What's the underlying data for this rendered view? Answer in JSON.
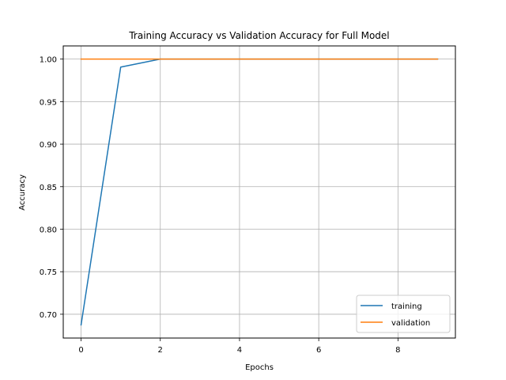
{
  "chart_data": {
    "type": "line",
    "title": "Training Accuracy vs Validation Accuracy for Full Model",
    "xlabel": "Epochs",
    "ylabel": "Accuracy",
    "x": [
      0,
      1,
      2,
      3,
      4,
      5,
      6,
      7,
      8,
      9
    ],
    "xlim": [
      -0.45,
      9.45
    ],
    "ylim": [
      0.672,
      1.0155
    ],
    "xticks": [
      0,
      2,
      4,
      6,
      8
    ],
    "yticks": [
      0.7,
      0.75,
      0.8,
      0.85,
      0.9,
      0.95,
      1.0
    ],
    "ytick_labels": [
      "0.70",
      "0.75",
      "0.80",
      "0.85",
      "0.90",
      "0.95",
      "1.00"
    ],
    "grid": true,
    "legend_position": "lower-right",
    "series": [
      {
        "name": "training",
        "color": "#1f77b4",
        "values": [
          0.6875,
          0.9906,
          1.0,
          1.0,
          1.0,
          1.0,
          1.0,
          1.0,
          1.0,
          1.0
        ]
      },
      {
        "name": "validation",
        "color": "#ff7f0e",
        "values": [
          1.0,
          1.0,
          1.0,
          1.0,
          1.0,
          1.0,
          1.0,
          1.0,
          1.0,
          1.0
        ]
      }
    ]
  }
}
